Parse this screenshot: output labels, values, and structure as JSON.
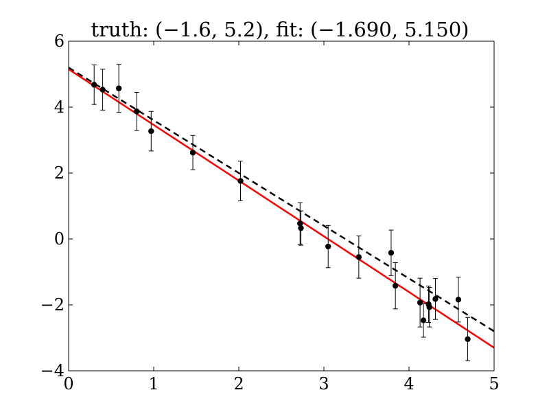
{
  "chart_data": {
    "type": "scatter",
    "title": "truth: (−1.6, 5.2), fit: (−1.690, 5.150)",
    "xlabel": "",
    "ylabel": "",
    "xlim": [
      0,
      5
    ],
    "ylim": [
      -4,
      6
    ],
    "xticks": [
      "0",
      "1",
      "2",
      "3",
      "4",
      "5"
    ],
    "yticks": [
      "−4",
      "−2",
      "0",
      "2",
      "4",
      "6"
    ],
    "grid": false,
    "points": [
      {
        "x": 0.3,
        "y": 4.68,
        "err": 0.6
      },
      {
        "x": 0.4,
        "y": 4.53,
        "err": 0.62
      },
      {
        "x": 0.59,
        "y": 4.57,
        "err": 0.73
      },
      {
        "x": 0.8,
        "y": 3.87,
        "err": 0.58
      },
      {
        "x": 0.97,
        "y": 3.27,
        "err": 0.6
      },
      {
        "x": 1.46,
        "y": 2.62,
        "err": 0.52
      },
      {
        "x": 2.02,
        "y": 1.76,
        "err": 0.6
      },
      {
        "x": 2.72,
        "y": 0.47,
        "err": 0.63
      },
      {
        "x": 2.73,
        "y": 0.33,
        "err": 0.52
      },
      {
        "x": 3.05,
        "y": -0.23,
        "err": 0.64
      },
      {
        "x": 3.41,
        "y": -0.55,
        "err": 0.64
      },
      {
        "x": 3.79,
        "y": -0.42,
        "err": 0.69
      },
      {
        "x": 3.84,
        "y": -1.42,
        "err": 0.7
      },
      {
        "x": 4.13,
        "y": -1.93,
        "err": 0.74
      },
      {
        "x": 4.17,
        "y": -2.47,
        "err": 0.51
      },
      {
        "x": 4.23,
        "y": -1.98,
        "err": 0.55
      },
      {
        "x": 4.24,
        "y": -2.07,
        "err": 0.6
      },
      {
        "x": 4.31,
        "y": -1.82,
        "err": 0.62
      },
      {
        "x": 4.58,
        "y": -1.84,
        "err": 0.68
      },
      {
        "x": 4.69,
        "y": -3.04,
        "err": 0.66
      }
    ],
    "lines": [
      {
        "style": "dashed",
        "color": "#000000",
        "slope": -1.6,
        "intercept": 5.2
      },
      {
        "style": "solid",
        "color": "#ff0000",
        "slope": -1.69,
        "intercept": 5.15
      }
    ],
    "marker_color": "#000000"
  }
}
